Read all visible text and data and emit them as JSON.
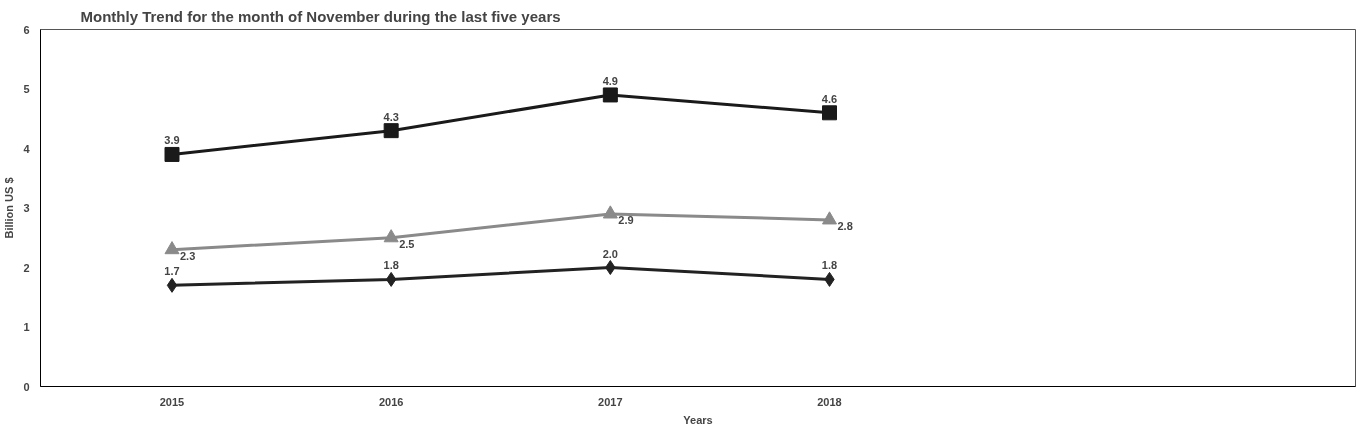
{
  "chart_data": {
    "type": "line",
    "title": "Monthly Trend for the month of November during the last five  years",
    "xlabel": "Years",
    "ylabel": "Billion US $",
    "categories": [
      "2015",
      "2016",
      "2017",
      "2018"
    ],
    "series": [
      {
        "color": "#222222",
        "values": [
          1.7,
          1.8,
          2.0,
          1.8
        ],
        "value_labels": [
          "1.7",
          "1.8",
          "2.0",
          "1.8"
        ],
        "marker": "diamond"
      },
      {
        "color": "#1a1a1a",
        "values": [
          3.9,
          4.3,
          4.9,
          4.6
        ],
        "value_labels": [
          "3.9",
          "4.3",
          "4.9",
          "4.6"
        ],
        "marker": "square"
      },
      {
        "color": "#8a8a8a",
        "values": [
          2.3,
          2.5,
          2.9,
          2.8
        ],
        "value_labels": [
          "2.3",
          "2.5",
          "2.9",
          "2.8"
        ],
        "marker": "triangle"
      }
    ],
    "ylim": [
      0,
      6
    ],
    "yticks": [
      0,
      1,
      2,
      3,
      4,
      5,
      6
    ],
    "grid": false,
    "line_style": "solid"
  }
}
